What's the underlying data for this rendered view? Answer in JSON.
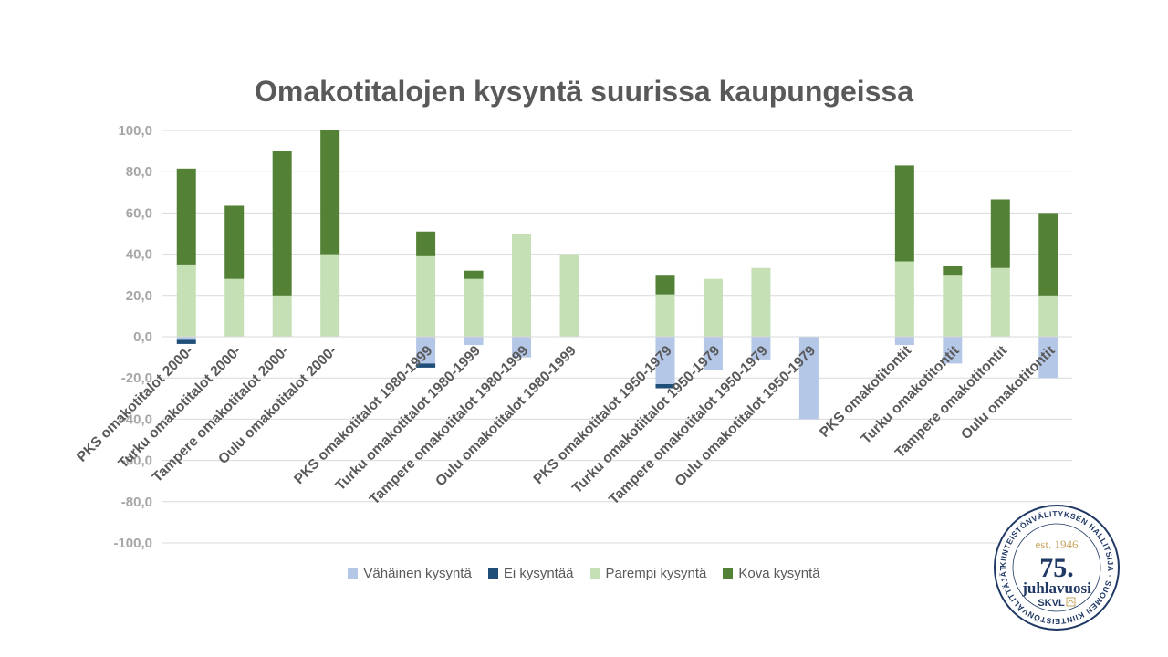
{
  "chart_data": {
    "type": "bar",
    "stacked": true,
    "title": "Omakotitalojen kysyntä suurissa kaupungeissa",
    "ylim": [
      -100,
      100
    ],
    "yticks": [
      "100,0",
      "80,0",
      "60,0",
      "40,0",
      "20,0",
      "0,0",
      "-20,0",
      "-40,0",
      "-60,0",
      "-80,0",
      "-100,0"
    ],
    "grid": true,
    "legend_position": "bottom",
    "categories": [
      "PKS omakotitalot 2000-",
      "Turku omakotitalot 2000-",
      "Tampere omakotitalot 2000-",
      "Oulu omakotitalot 2000-",
      "",
      "PKS omakotitalot 1980-1999",
      "Turku omakotitalot 1980-1999",
      "Tampere omakotitalot 1980-1999",
      "Oulu omakotitalot 1980-1999",
      "",
      "PKS omakotitalot 1950-1979",
      "Turku omakotiitalot 1950-1979",
      "Tampere omakotitalot 1950-1979",
      "Oulu omakotitalot 1950-1979",
      "",
      "PKS omakotitontit",
      "Turku omakotitontit",
      "Tampere omakotitontit",
      "Oulu omakotitontit"
    ],
    "series": [
      {
        "name": "Vähäinen kysyntä",
        "color": "#b4c7e7",
        "values": [
          -1.5,
          0,
          0,
          0,
          null,
          -13,
          -4,
          -10,
          0,
          null,
          -23,
          -16,
          -11,
          -40,
          null,
          -4,
          -13,
          0,
          -20
        ]
      },
      {
        "name": "Ei kysyntää",
        "color": "#1f4e79",
        "values": [
          -2,
          0,
          0,
          0,
          null,
          -2,
          0,
          0,
          0,
          null,
          -2,
          0,
          0,
          0,
          null,
          0,
          0,
          0,
          0
        ]
      },
      {
        "name": "Parempi kysyntä",
        "color": "#c5e0b4",
        "values": [
          35,
          28,
          20,
          40,
          null,
          39,
          28,
          50,
          40,
          null,
          20.5,
          28,
          33.3,
          0,
          null,
          36.5,
          30,
          33.3,
          20
        ]
      },
      {
        "name": "Kova kysyntä",
        "color": "#538135",
        "values": [
          46.5,
          35.5,
          70,
          60,
          null,
          12,
          4,
          0,
          0,
          null,
          9.5,
          0,
          0,
          0,
          null,
          46.5,
          4.5,
          33.3,
          40
        ]
      }
    ]
  },
  "badge": {
    "est": "est. 1946",
    "number": "75.",
    "word": "juhlavuosi",
    "brand": "SKVL",
    "ring_text": "KIINTEISTÖNVÄLITYKSEN HALLITSIJA · SUOMEN KIINTEISTÖNVÄLITTÄJÄT RY ·"
  }
}
